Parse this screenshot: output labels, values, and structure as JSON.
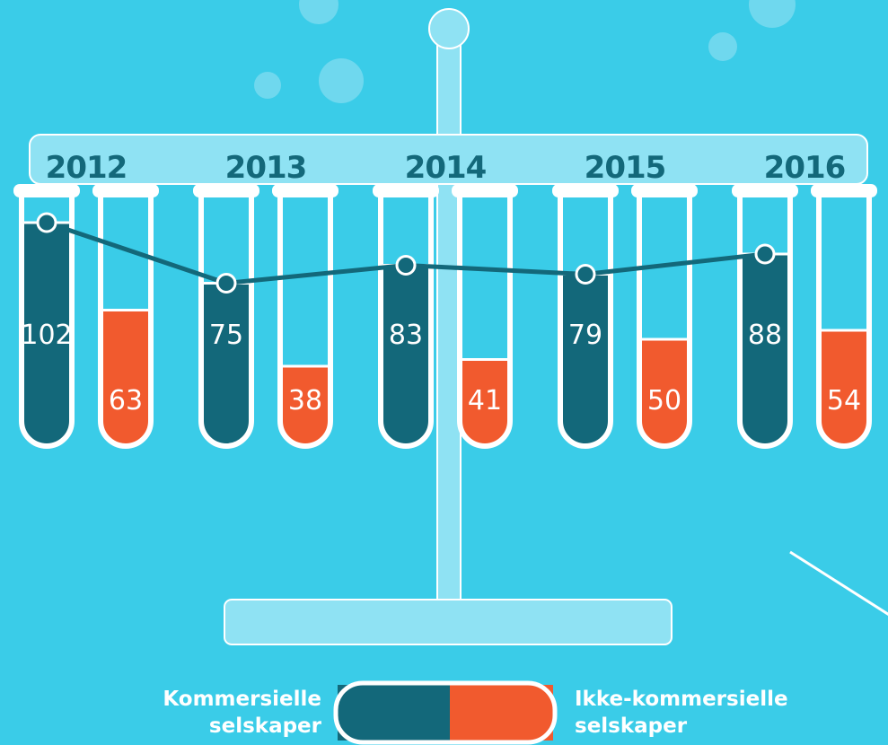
{
  "chart_data": {
    "type": "bar",
    "categories": [
      "2012",
      "2013",
      "2014",
      "2015",
      "2016"
    ],
    "series": [
      {
        "name": "Kommersielle selskaper",
        "color": "#13687a",
        "values": [
          102,
          75,
          83,
          79,
          88
        ]
      },
      {
        "name": "Ikke-kommersielle selskaper",
        "color": "#f15a2e",
        "values": [
          63,
          38,
          41,
          50,
          54
        ]
      }
    ]
  }
}
